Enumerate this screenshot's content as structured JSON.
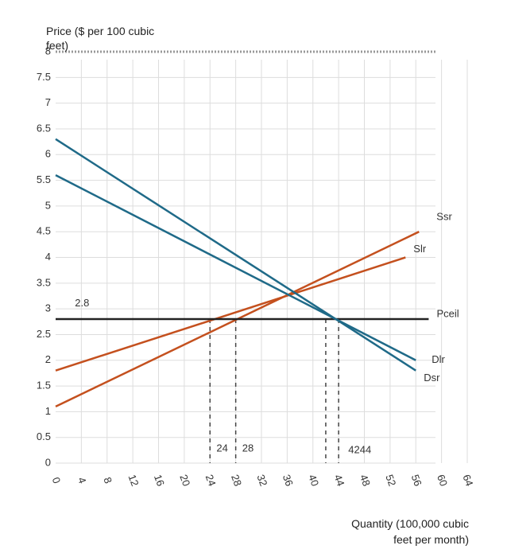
{
  "chart_data": {
    "type": "line",
    "y_label": "Price ($ per 100 cubic feet)",
    "x_label": "Quantity (100,000 cubic feet per month)",
    "xlim": [
      0,
      64
    ],
    "xticks": [
      0,
      4,
      8,
      12,
      16,
      20,
      24,
      28,
      32,
      36,
      40,
      44,
      48,
      52,
      56,
      60,
      64
    ],
    "ylim": [
      0,
      8
    ],
    "yticks": [
      0,
      0.5,
      1,
      1.5,
      2,
      2.5,
      3,
      3.5,
      4,
      4.5,
      5,
      5.5,
      6,
      6.5,
      7,
      7.5,
      8
    ],
    "grid": true,
    "series": [
      {
        "name": "Ssr",
        "color": "#c4501e",
        "x": [
          0,
          56.5
        ],
        "values": [
          1.1,
          4.5
        ]
      },
      {
        "name": "Slr",
        "color": "#c4501e",
        "x": [
          0,
          54.4
        ],
        "values": [
          1.8,
          4.0
        ]
      },
      {
        "name": "Pceil",
        "color": "#222222",
        "x": [
          0,
          58
        ],
        "values": [
          2.8,
          2.8
        ]
      },
      {
        "name": "Dlr",
        "color": "#1f6a88",
        "x": [
          0,
          56
        ],
        "values": [
          5.6,
          2.0
        ]
      },
      {
        "name": "Dsr",
        "color": "#1f6a88",
        "x": [
          0,
          56
        ],
        "values": [
          6.3,
          1.8
        ]
      }
    ],
    "annotations": [
      {
        "text": "2.8",
        "x": 3,
        "y": 3.1
      },
      {
        "text": "24",
        "x": 25,
        "y": 0.28
      },
      {
        "text": "28",
        "x": 29,
        "y": 0.28
      },
      {
        "text": "4244",
        "x": 45.5,
        "y": 0.25
      }
    ],
    "drop_lines_x": [
      24,
      28,
      42,
      44
    ]
  }
}
